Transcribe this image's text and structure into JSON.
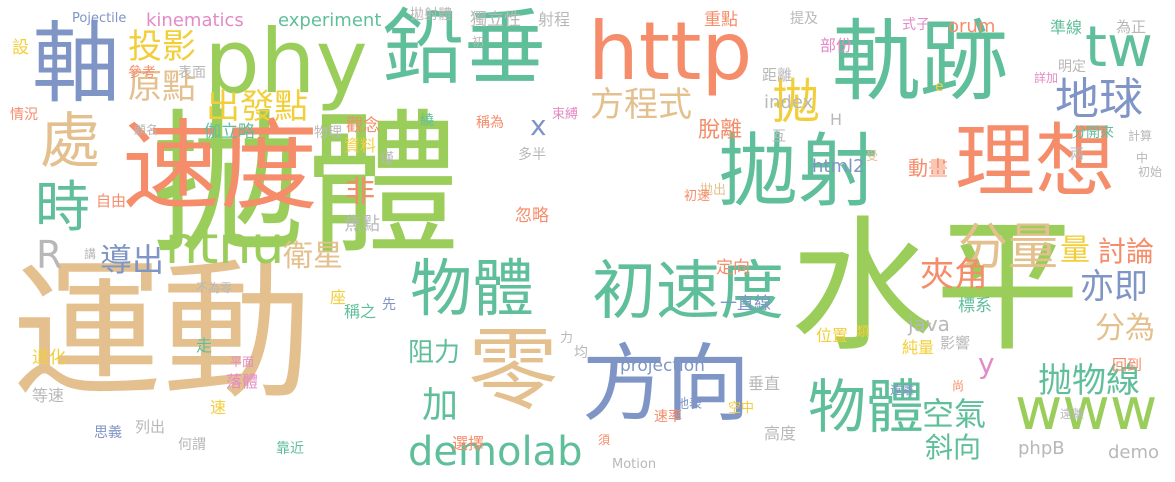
{
  "colors": {
    "background": "#ffffff",
    "green": "#9ACD5A",
    "teal": "#5FBF9A",
    "orange": "#F58C6A",
    "tan": "#E3C08E",
    "blue": "#7F95C6",
    "pink": "#E48AC6",
    "yellow": "#F2CF3A",
    "grey": "#B8B8B8"
  },
  "words": [
    "拋體",
    "運動",
    "水平",
    "速度",
    "鉛垂",
    "phy",
    "http",
    "軌跡",
    "理想",
    "拋射",
    "軸",
    "零",
    "方向",
    "物體",
    "初速度",
    "物體",
    "處",
    "時",
    "ntnu",
    "tw",
    "地球",
    "分量",
    "www",
    "投影",
    "原點",
    "出發點",
    "方程式",
    "拋",
    "導出",
    "衛星",
    "非",
    "量",
    "討論",
    "夾角",
    "亦即",
    "分為",
    "抛物線",
    "空氣",
    "斜向",
    "加",
    "阻力",
    "demolab",
    "demo",
    "phpB",
    "index",
    "y",
    "x",
    "R",
    "脫離",
    "動畫",
    "html2",
    "orum",
    "java",
    "kinematics",
    "experiment",
    "Pojectile",
    "projection",
    "Motion",
    "一直線",
    "純量",
    "標系",
    "影響",
    "回到",
    "位置",
    "垂直",
    "選擇",
    "定向",
    "高度",
    "地表",
    "空中",
    "速率",
    "思義",
    "何謂",
    "列出",
    "靠近",
    "落體",
    "平面",
    "走",
    "退化",
    "等速",
    "速",
    "座",
    "稱之",
    "先",
    "不為零",
    "焦點",
    "忽略",
    "多半",
    "自由",
    "伽立略",
    "觀念",
    "資料",
    "僅",
    "物理",
    "稱為",
    "繞",
    "束縛",
    "類",
    "遠離",
    "尚",
    "互",
    "受",
    "拋出",
    "初始",
    "中",
    "計算",
    "分開來",
    "兩",
    "明定",
    "詳加",
    "為正",
    "準線",
    "式子",
    "部份",
    "距離",
    "表面",
    "參考",
    "顧名",
    "情況",
    "設",
    "講",
    "初",
    "獨立性",
    "拋射體",
    "射程",
    "重點",
    "提及",
    "H",
    "e",
    "力",
    "均",
    "須",
    "遠離",
    "初速"
  ]
}
